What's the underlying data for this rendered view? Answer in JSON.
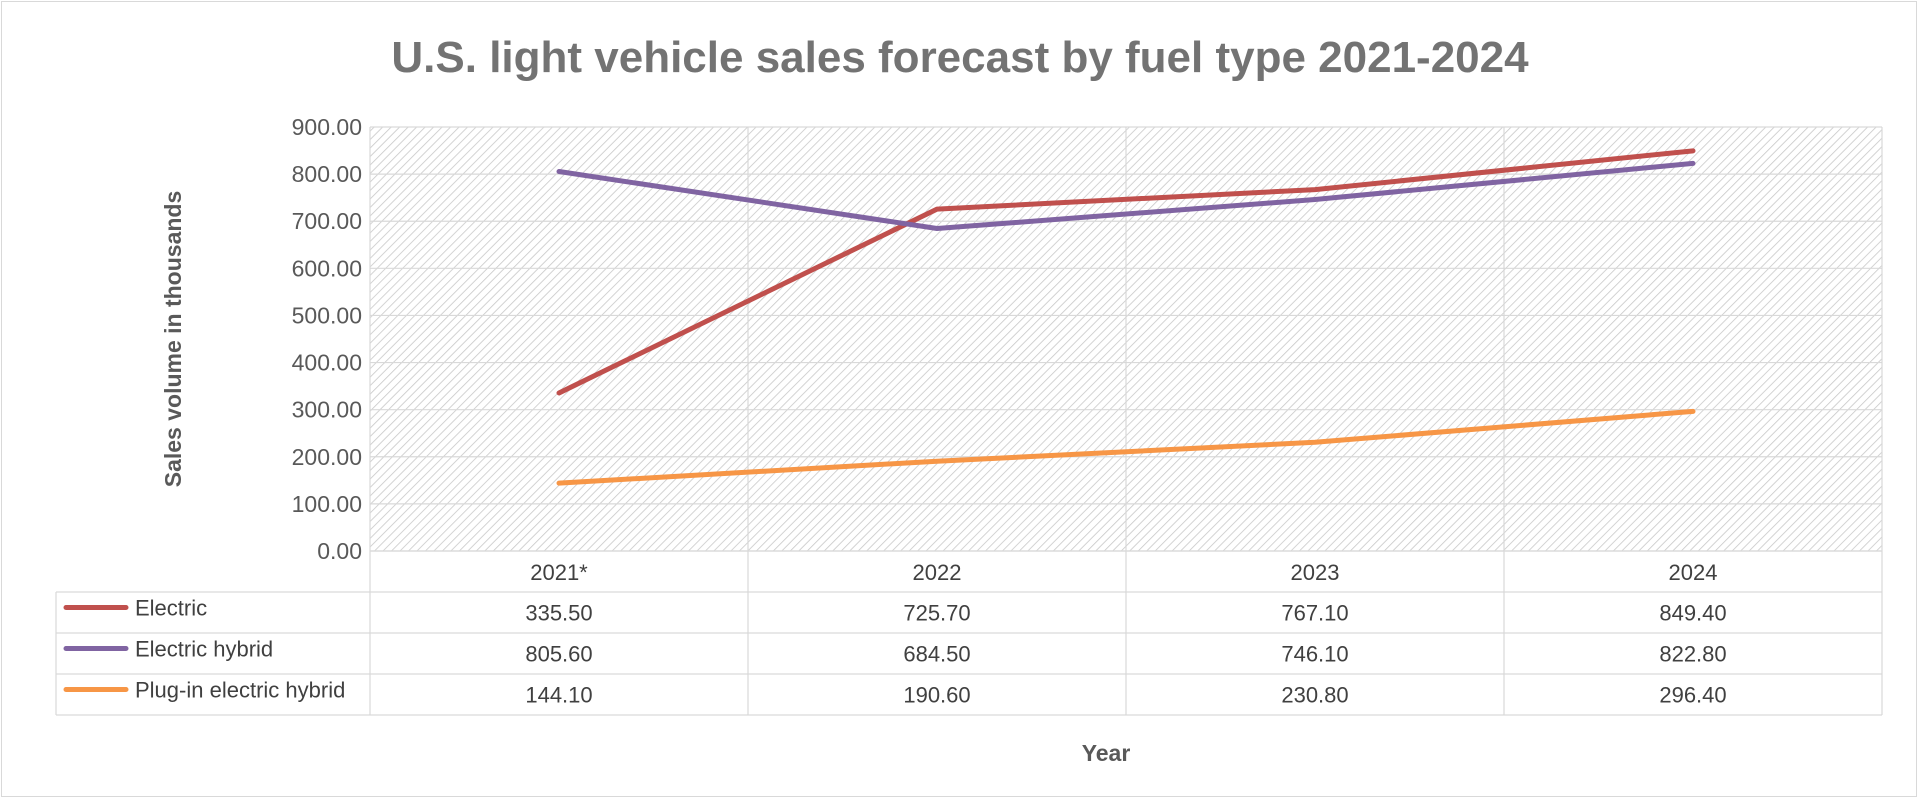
{
  "chart_data": {
    "type": "line",
    "title": "U.S. light vehicle sales forecast by fuel type 2021-2024",
    "xlabel": "Year",
    "ylabel": "Sales volume in thousands",
    "categories": [
      "2021*",
      "2022",
      "2023",
      "2024"
    ],
    "ylim": [
      0,
      900
    ],
    "yticks": [
      "0.00",
      "100.00",
      "200.00",
      "300.00",
      "400.00",
      "500.00",
      "600.00",
      "700.00",
      "800.00",
      "900.00"
    ],
    "grid": true,
    "legend": "data-table",
    "series": [
      {
        "name": "Electric",
        "color": "#c0504d",
        "values": [
          335.5,
          725.7,
          767.1,
          849.4
        ],
        "labels": [
          "335.50",
          "725.70",
          "767.10",
          "849.40"
        ]
      },
      {
        "name": "Electric hybrid",
        "color": "#8064a2",
        "values": [
          805.6,
          684.5,
          746.1,
          822.8
        ],
        "labels": [
          "805.60",
          "684.50",
          "746.10",
          "822.80"
        ]
      },
      {
        "name": "Plug-in electric hybrid",
        "color": "#f79646",
        "values": [
          144.1,
          190.6,
          230.8,
          296.4
        ],
        "labels": [
          "144.10",
          "190.60",
          "230.80",
          "296.40"
        ]
      }
    ]
  }
}
